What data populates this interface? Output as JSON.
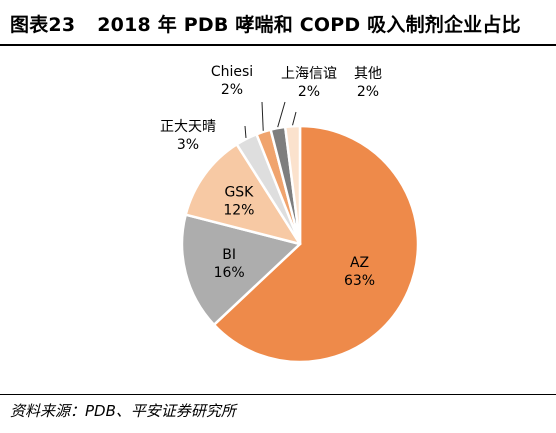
{
  "figure": {
    "number": "图表23",
    "title": "2018 年 PDB 哮喘和 COPD 吸入制剂企业占比"
  },
  "source": "资料来源：PDB、平安证券研究所",
  "chart_data": {
    "type": "pie",
    "title": "2018 年 PDB 哮喘和 COPD 吸入制剂企业占比",
    "start": "12 o'clock",
    "direction": "clockwise",
    "slices": [
      {
        "label": "AZ",
        "value": 63,
        "value_label": "63%",
        "color": "#ee8a4a",
        "label_color": "#000000",
        "label_placement": "inside"
      },
      {
        "label": "BI",
        "value": 16,
        "value_label": "16%",
        "color": "#adadad",
        "label_color": "#000000",
        "label_placement": "inside"
      },
      {
        "label": "GSK",
        "value": 12,
        "value_label": "12%",
        "color": "#f7c9a4",
        "label_color": "#000000",
        "label_placement": "inside"
      },
      {
        "label": "正大天晴",
        "value": 3,
        "value_label": "3%",
        "color": "#dedede",
        "label_color": "#000000",
        "label_placement": "outside"
      },
      {
        "label": "Chiesi",
        "value": 2,
        "value_label": "2%",
        "color": "#f0a46e",
        "label_color": "#000000",
        "label_placement": "outside"
      },
      {
        "label": "上海信谊",
        "value": 2,
        "value_label": "2%",
        "color": "#7e7e7e",
        "label_color": "#000000",
        "label_placement": "outside"
      },
      {
        "label": "其他",
        "value": 2,
        "value_label": "2%",
        "color": "#fbe2cd",
        "label_color": "#000000",
        "label_placement": "outside"
      }
    ]
  }
}
